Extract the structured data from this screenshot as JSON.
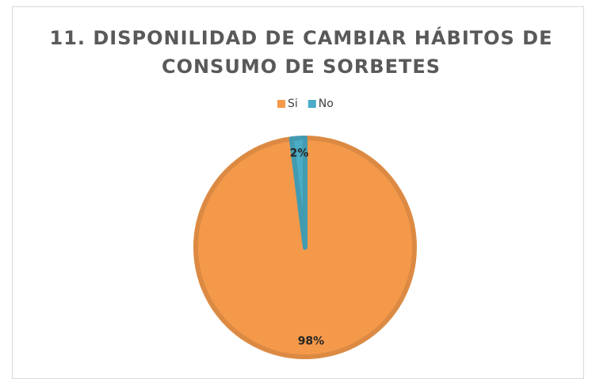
{
  "chart_data": {
    "type": "pie",
    "title": "11. DISPONILIDAD DE CAMBIAR HÁBITOS DE CONSUMO DE SORBETES",
    "categories": [
      "Si",
      "No"
    ],
    "values": [
      98,
      2
    ],
    "value_labels": [
      "98%",
      "2%"
    ],
    "colors": [
      "#f4994a",
      "#4aacc5"
    ],
    "legend": "top"
  }
}
